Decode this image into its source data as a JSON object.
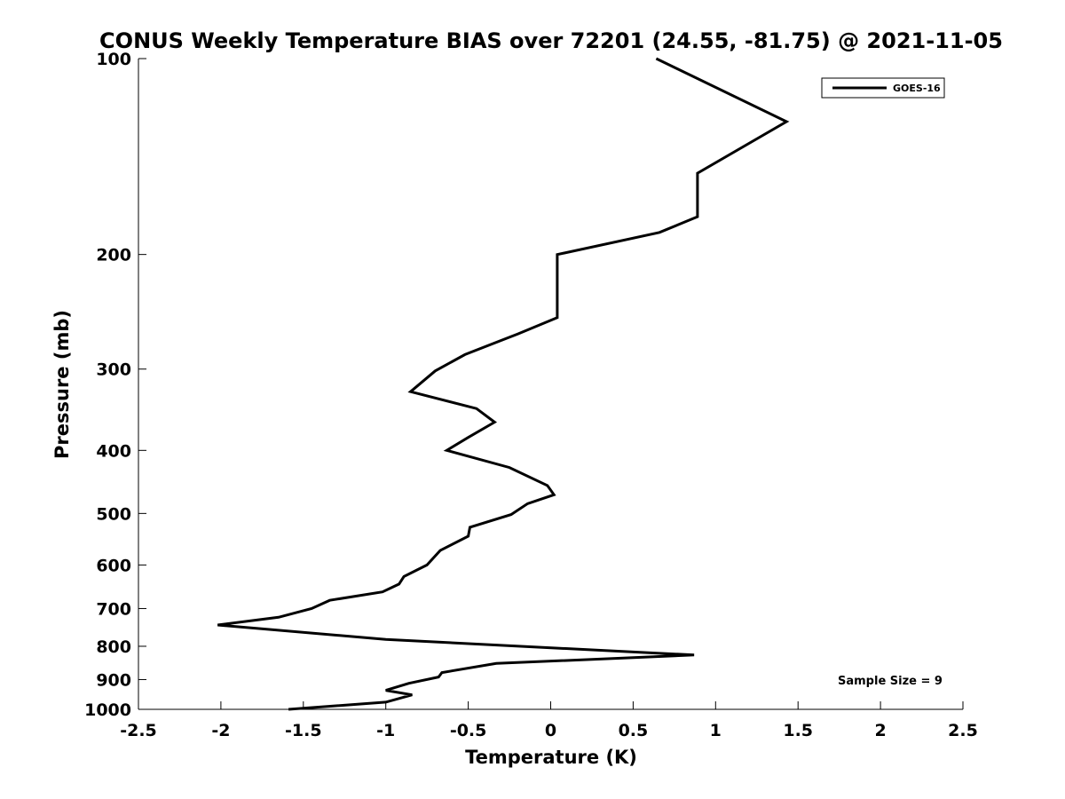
{
  "chart_data": {
    "type": "line",
    "title": "CONUS Weekly Temperature BIAS over 72201 (24.55, -81.75) @ 2021-11-05",
    "xlabel": "Temperature (K)",
    "ylabel": "Pressure (mb)",
    "xlim": [
      -2.5,
      2.5
    ],
    "ylim": [
      100,
      1000
    ],
    "y_scale": "log",
    "y_reversed": true,
    "x_ticks": [
      -2.5,
      -2,
      -1.5,
      -1,
      -0.5,
      0,
      0.5,
      1,
      1.5,
      2,
      2.5
    ],
    "x_tick_labels": [
      "-2.5",
      "-2",
      "-1.5",
      "-1",
      "-0.5",
      "0",
      "0.5",
      "1",
      "1.5",
      "2",
      "2.5"
    ],
    "y_ticks": [
      100,
      200,
      300,
      400,
      500,
      600,
      700,
      800,
      900,
      1000
    ],
    "y_tick_labels": [
      "100",
      "200",
      "300",
      "400",
      "500",
      "600",
      "700",
      "800",
      "900",
      "1000"
    ],
    "grid": false,
    "legend_position": "top-right",
    "series": [
      {
        "name": "GOES-16",
        "color": "#000000",
        "points": [
          [
            0.64,
            100
          ],
          [
            1.43,
            125
          ],
          [
            0.89,
            150
          ],
          [
            0.89,
            175
          ],
          [
            0.66,
            185
          ],
          [
            0.04,
            200
          ],
          [
            0.04,
            225
          ],
          [
            0.04,
            250
          ],
          [
            -0.2,
            265
          ],
          [
            -0.52,
            285
          ],
          [
            -0.7,
            302
          ],
          [
            -0.85,
            325
          ],
          [
            -0.45,
            345
          ],
          [
            -0.34,
            362
          ],
          [
            -0.5,
            382
          ],
          [
            -0.63,
            400
          ],
          [
            -0.25,
            425
          ],
          [
            -0.02,
            453
          ],
          [
            0.02,
            468
          ],
          [
            -0.14,
            483
          ],
          [
            -0.24,
            502
          ],
          [
            -0.49,
            525
          ],
          [
            -0.5,
            542
          ],
          [
            -0.67,
            570
          ],
          [
            -0.75,
            600
          ],
          [
            -0.89,
            625
          ],
          [
            -0.92,
            642
          ],
          [
            -1.02,
            660
          ],
          [
            -1.34,
            680
          ],
          [
            -1.45,
            700
          ],
          [
            -1.65,
            722
          ],
          [
            -2.02,
            742
          ],
          [
            -1.0,
            781
          ],
          [
            0.87,
            825
          ],
          [
            -0.33,
            850
          ],
          [
            -0.66,
            878
          ],
          [
            -0.68,
            892
          ],
          [
            -0.86,
            912
          ],
          [
            -1.0,
            935
          ],
          [
            -0.84,
            950
          ],
          [
            -1.0,
            975
          ],
          [
            -1.59,
            1000
          ]
        ]
      }
    ],
    "annotations": [
      {
        "text": "Sample Size = 9",
        "position": "bottom-right"
      }
    ]
  }
}
